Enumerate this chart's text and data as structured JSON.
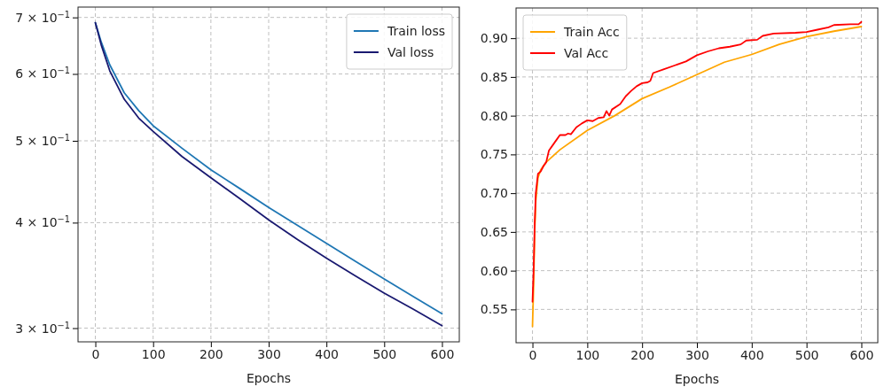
{
  "chart_data": [
    {
      "type": "line",
      "xlabel": "Epochs",
      "log": true,
      "grid": true,
      "legend": "top right",
      "line_style": "solid",
      "xlim": [
        -30,
        630
      ],
      "xticks": [
        0,
        100,
        200,
        300,
        400,
        500,
        600
      ],
      "ylim": [
        0.289,
        0.72
      ],
      "yticks": [
        {
          "value": 0.3,
          "label": "3 × 10$^{−1}$"
        },
        {
          "value": 0.4,
          "label": "4 × 10$^{−1}$"
        },
        {
          "value": 0.5,
          "label": "5 × 10$^{−1}$"
        },
        {
          "value": 0.6,
          "label": "6 × 10$^{−1}$"
        },
        {
          "value": 0.7,
          "label": "7 × 10$^{−1}$"
        }
      ],
      "x": [
        0,
        10,
        25,
        50,
        75,
        100,
        150,
        200,
        250,
        300,
        350,
        400,
        450,
        500,
        550,
        600
      ],
      "series": [
        {
          "name": "Train loss",
          "color": "#1f77b4",
          "values": [
            0.69,
            0.655,
            0.615,
            0.57,
            0.543,
            0.521,
            0.49,
            0.462,
            0.439,
            0.417,
            0.397,
            0.378,
            0.36,
            0.343,
            0.327,
            0.312
          ]
        },
        {
          "name": "Val loss",
          "color": "#191970",
          "values": [
            0.69,
            0.65,
            0.605,
            0.56,
            0.532,
            0.513,
            0.479,
            0.452,
            0.427,
            0.403,
            0.382,
            0.363,
            0.346,
            0.33,
            0.316,
            0.302
          ]
        }
      ]
    },
    {
      "type": "line",
      "xlabel": "Epochs",
      "grid": true,
      "legend": "top left",
      "line_style": "solid",
      "xlim": [
        -30,
        630
      ],
      "xticks": [
        0,
        100,
        200,
        300,
        400,
        500,
        600
      ],
      "ylim": [
        0.507,
        0.939
      ],
      "yticks": [
        {
          "value": 0.55,
          "label": "0.55"
        },
        {
          "value": 0.6,
          "label": "0.60"
        },
        {
          "value": 0.65,
          "label": "0.65"
        },
        {
          "value": 0.7,
          "label": "0.70"
        },
        {
          "value": 0.75,
          "label": "0.75"
        },
        {
          "value": 0.8,
          "label": "0.80"
        },
        {
          "value": 0.85,
          "label": "0.85"
        },
        {
          "value": 0.9,
          "label": "0.90"
        }
      ],
      "series": [
        {
          "name": "Train Acc",
          "color": "#ffa500",
          "x": [
            0,
            2,
            4,
            6,
            10,
            15,
            25,
            50,
            100,
            150,
            200,
            250,
            300,
            350,
            400,
            450,
            500,
            550,
            600
          ],
          "values": [
            0.528,
            0.58,
            0.65,
            0.69,
            0.72,
            0.73,
            0.74,
            0.756,
            0.781,
            0.8,
            0.822,
            0.837,
            0.853,
            0.869,
            0.879,
            0.892,
            0.902,
            0.909,
            0.915
          ]
        },
        {
          "name": "Val Acc",
          "color": "#ff0000",
          "x": [
            0,
            2,
            4,
            6,
            10,
            15,
            20,
            25,
            30,
            35,
            45,
            50,
            60,
            65,
            70,
            80,
            90,
            100,
            110,
            120,
            130,
            135,
            140,
            145,
            160,
            170,
            180,
            190,
            200,
            210,
            215,
            220,
            240,
            260,
            280,
            300,
            320,
            340,
            360,
            380,
            390,
            410,
            420,
            440,
            480,
            500,
            520,
            540,
            550,
            580,
            595,
            600
          ],
          "values": [
            0.56,
            0.6,
            0.66,
            0.7,
            0.725,
            0.728,
            0.735,
            0.74,
            0.755,
            0.76,
            0.77,
            0.775,
            0.775,
            0.777,
            0.776,
            0.785,
            0.79,
            0.794,
            0.793,
            0.797,
            0.798,
            0.806,
            0.8,
            0.808,
            0.815,
            0.825,
            0.832,
            0.838,
            0.842,
            0.843,
            0.845,
            0.855,
            0.86,
            0.865,
            0.87,
            0.878,
            0.883,
            0.887,
            0.889,
            0.892,
            0.897,
            0.898,
            0.903,
            0.906,
            0.907,
            0.908,
            0.911,
            0.914,
            0.917,
            0.918,
            0.918,
            0.921
          ]
        }
      ]
    }
  ]
}
